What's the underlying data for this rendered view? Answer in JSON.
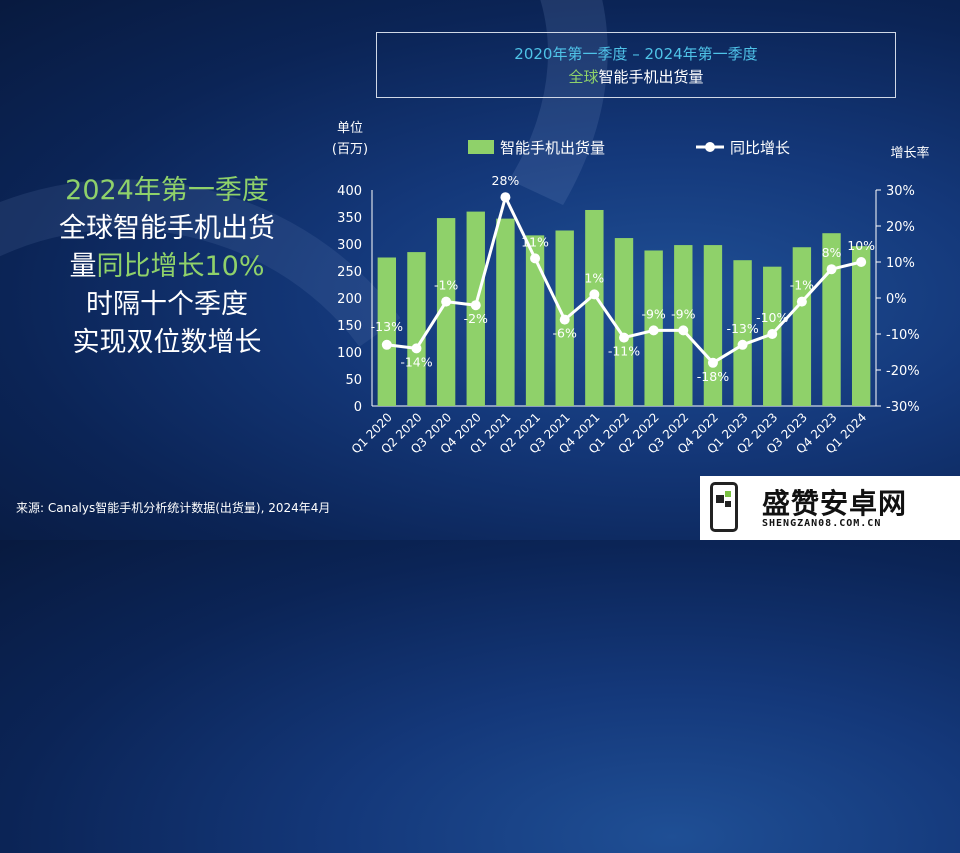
{
  "title": {
    "line1": "2020年第一季度 – 2024年第一季度",
    "line2_highlight": "全球",
    "line2_rest": "智能手机出货量"
  },
  "headline": {
    "line1": "2024年第一季度",
    "line2": "全球智能手机出货",
    "line3_prefix": "量",
    "line3_highlight": "同比增长10%",
    "line4": "时隔十个季度",
    "line5": "实现双位数增长"
  },
  "source": "来源: Canalys智能手机分析统计数据(出货量), 2024年4月",
  "logo": {
    "name": "盛赞安卓网",
    "url": "SHENGZAN08.COM.CN"
  },
  "colors": {
    "bar": "#8fd16a",
    "line": "#ffffff"
  },
  "chart_data": {
    "type": "bar",
    "categories": [
      "Q1 2020",
      "Q2 2020",
      "Q3 2020",
      "Q4 2020",
      "Q1 2021",
      "Q2 2021",
      "Q3 2021",
      "Q4 2021",
      "Q1 2022",
      "Q2 2022",
      "Q3 2022",
      "Q4 2022",
      "Q1 2023",
      "Q2 2023",
      "Q3 2023",
      "Q4 2023",
      "Q1 2024"
    ],
    "series": [
      {
        "name": "智能手机出货量",
        "type": "bar",
        "axis": "left",
        "values": [
          275,
          285,
          348,
          360,
          347,
          316,
          325,
          363,
          311,
          288,
          298,
          298,
          270,
          258,
          294,
          320,
          296
        ]
      },
      {
        "name": "同比增长",
        "type": "line",
        "axis": "right",
        "values": [
          -13,
          -14,
          -1,
          -2,
          28,
          11,
          -6,
          1,
          -11,
          -9,
          -9,
          -18,
          -13,
          -10,
          -1,
          8,
          10
        ],
        "labels": [
          "-13%",
          "-14%",
          "-1%",
          "-2%",
          "28%",
          "11%",
          "-6%",
          "1%",
          "-11%",
          "-9%",
          "-9%",
          "-18%",
          "-13%",
          "-10%",
          "-1%",
          "8%",
          "10%"
        ]
      }
    ],
    "ylabel_left": [
      "单位",
      "(百万)"
    ],
    "ylabel_right": "增长率",
    "ylim_left": [
      0,
      400
    ],
    "yticks_left": [
      "0",
      "50",
      "100",
      "150",
      "200",
      "250",
      "300",
      "350",
      "400"
    ],
    "ylim_right": [
      -30,
      30
    ],
    "yticks_right": [
      "-30%",
      "-20%",
      "-10%",
      "0%",
      "10%",
      "20%",
      "30%"
    ],
    "legend_position": "top",
    "grid": false
  }
}
